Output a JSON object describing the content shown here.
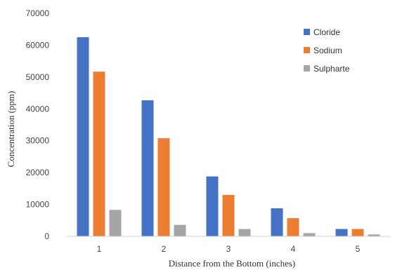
{
  "chart_data": {
    "type": "bar",
    "title": "",
    "xlabel": "Distance from the Bottom (inches)",
    "ylabel": "Concentration (ppm)",
    "categories": [
      "1",
      "2",
      "3",
      "4",
      "5"
    ],
    "ylim": [
      0,
      70000
    ],
    "yticks": [
      0,
      10000,
      20000,
      30000,
      40000,
      50000,
      60000,
      70000
    ],
    "grid": false,
    "legend_position": "top-right",
    "series": [
      {
        "name": "Cloride",
        "color": "#4472C4",
        "values": [
          62500,
          42700,
          18800,
          8800,
          2300
        ]
      },
      {
        "name": "Sodium",
        "color": "#ED7D31",
        "values": [
          51700,
          30800,
          13000,
          5700,
          2300
        ]
      },
      {
        "name": "Sulpharte",
        "color": "#A5A5A5",
        "values": [
          8300,
          3600,
          2300,
          1000,
          600
        ]
      }
    ]
  }
}
